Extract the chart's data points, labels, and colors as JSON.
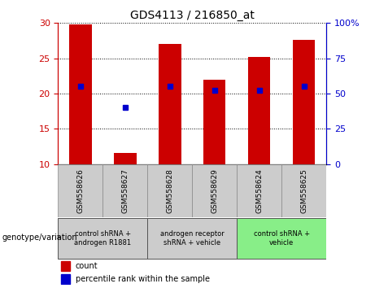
{
  "title": "GDS4113 / 216850_at",
  "samples": [
    "GSM558626",
    "GSM558627",
    "GSM558628",
    "GSM558629",
    "GSM558624",
    "GSM558625"
  ],
  "bar_heights": [
    29.8,
    11.6,
    27.0,
    22.0,
    25.2,
    27.6
  ],
  "percentile_values": [
    21.1,
    18.1,
    21.0,
    20.5,
    20.5,
    21.0
  ],
  "bar_color": "#cc0000",
  "percentile_color": "#0000cc",
  "ylim_left": [
    10,
    30
  ],
  "ylim_right": [
    0,
    100
  ],
  "yticks_left": [
    10,
    15,
    20,
    25,
    30
  ],
  "yticks_right": [
    0,
    25,
    50,
    75,
    100
  ],
  "groups": [
    {
      "label": "control shRNA +\nandrogen R1881",
      "samples": [
        0,
        1
      ],
      "color": "#cccccc"
    },
    {
      "label": "androgen receptor\nshRNA + vehicle",
      "samples": [
        2,
        3
      ],
      "color": "#cccccc"
    },
    {
      "label": "control shRNA +\nvehicle",
      "samples": [
        4,
        5
      ],
      "color": "#88ee88"
    }
  ],
  "legend_count_label": "count",
  "legend_percentile_label": "percentile rank within the sample",
  "xlabel_genotype": "genotype/variation",
  "background_color": "#ffffff",
  "left_axis_color": "#cc0000",
  "right_axis_color": "#0000cc",
  "sample_box_color": "#cccccc",
  "bar_width": 0.5
}
